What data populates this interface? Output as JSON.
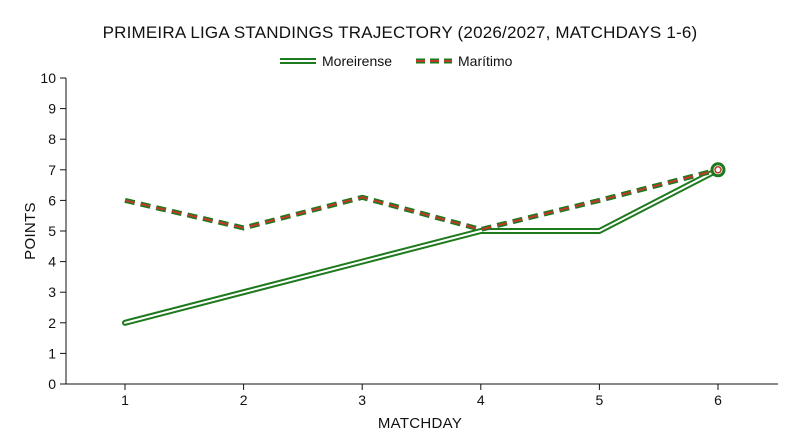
{
  "chart_data": {
    "type": "line",
    "title": "PRIMEIRA LIGA STANDINGS TRAJECTORY (2026/2027, MATCHDAYS 1-6)",
    "xlabel": "MATCHDAY",
    "ylabel": "POINTS",
    "x": [
      1,
      2,
      3,
      4,
      5,
      6
    ],
    "ylim": [
      0,
      10
    ],
    "yticks": [
      0,
      1,
      2,
      3,
      4,
      5,
      6,
      7,
      8,
      9,
      10
    ],
    "grid": false,
    "legend_position": "top-center",
    "series": [
      {
        "name": "Moreirense",
        "values": [
          2,
          3,
          4,
          5,
          5,
          7
        ],
        "style": "double-line",
        "color": "#1e7a1e"
      },
      {
        "name": "Marítimo",
        "values": [
          6,
          5.1,
          6.1,
          5.05,
          6,
          7
        ],
        "style": "dashed",
        "color": "#1e7a1e",
        "accent_color": "#c0392b"
      }
    ]
  }
}
